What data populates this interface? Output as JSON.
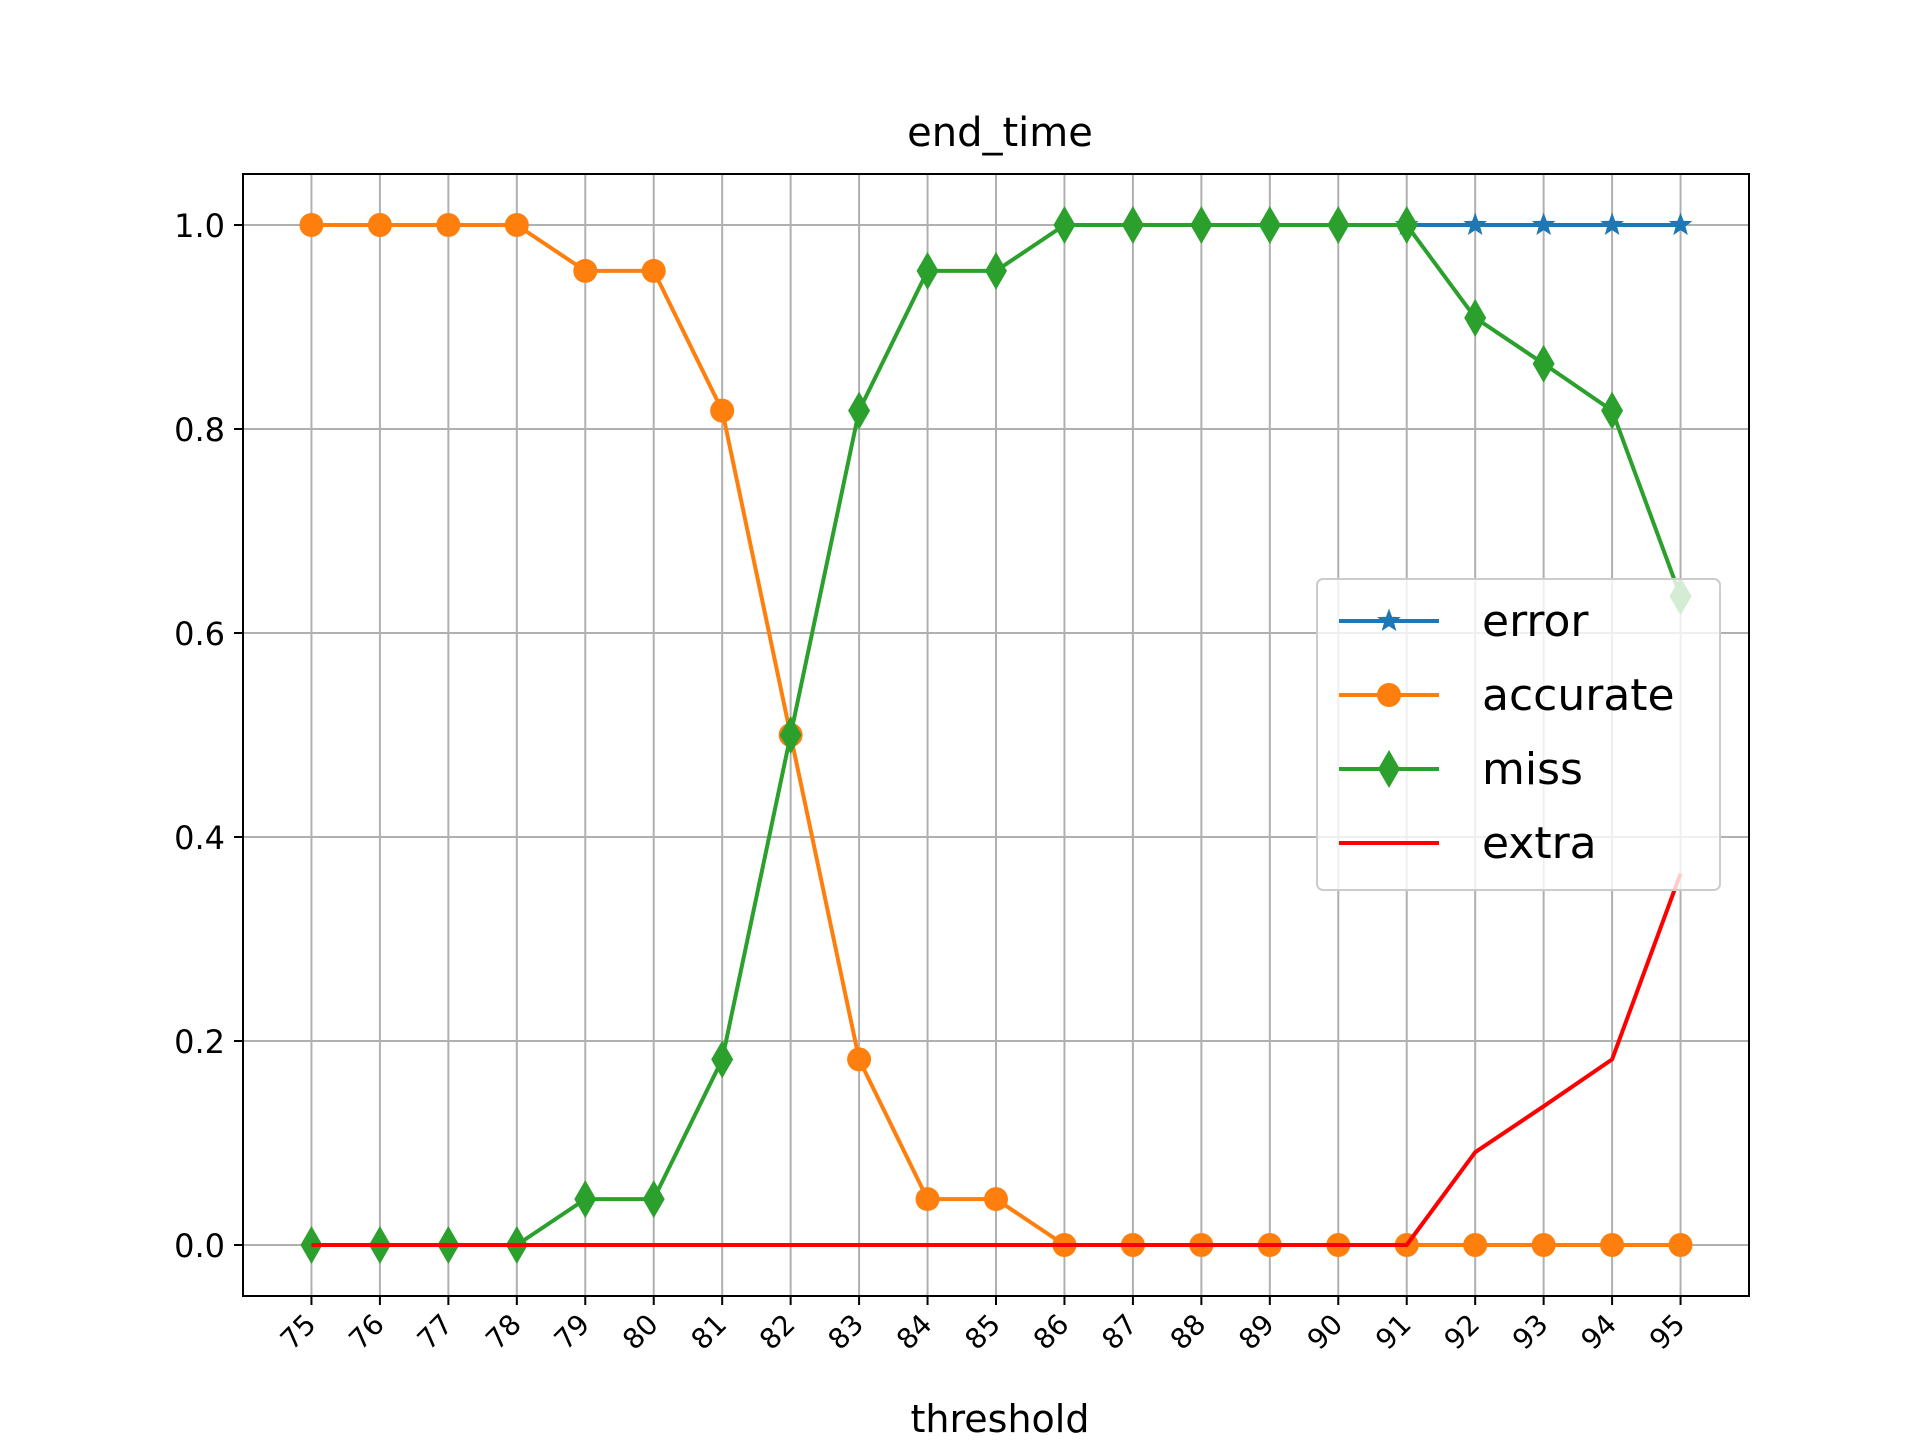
{
  "chart_data": {
    "type": "line",
    "title": "end_time",
    "xlabel": "threshold",
    "ylabel": "",
    "x": [
      75,
      76,
      77,
      78,
      79,
      80,
      81,
      82,
      83,
      84,
      85,
      86,
      87,
      88,
      89,
      90,
      91,
      92,
      93,
      94,
      95
    ],
    "ylim": [
      -0.05,
      1.05
    ],
    "yticks": [
      "0.0",
      "0.2",
      "0.4",
      "0.6",
      "0.8",
      "1.0"
    ],
    "grid": true,
    "legend_position": "center-right",
    "series": [
      {
        "name": "error",
        "color": "#1f77b4",
        "marker": "star",
        "values": [
          null,
          null,
          null,
          null,
          null,
          null,
          null,
          null,
          null,
          null,
          null,
          null,
          null,
          null,
          null,
          null,
          1.0,
          1.0,
          1.0,
          1.0,
          1.0
        ]
      },
      {
        "name": "accurate",
        "color": "#ff7f0e",
        "marker": "circle",
        "values": [
          1.0,
          1.0,
          1.0,
          1.0,
          0.955,
          0.955,
          0.818,
          0.5,
          0.182,
          0.045,
          0.045,
          0.0,
          0.0,
          0.0,
          0.0,
          0.0,
          0.0,
          0.0,
          0.0,
          0.0,
          0.0
        ]
      },
      {
        "name": "miss",
        "color": "#2ca02c",
        "marker": "thin_diamond",
        "values": [
          0.0,
          0.0,
          0.0,
          0.0,
          0.045,
          0.045,
          0.182,
          0.5,
          0.818,
          0.955,
          0.955,
          1.0,
          1.0,
          1.0,
          1.0,
          1.0,
          1.0,
          0.909,
          0.864,
          0.818,
          0.636
        ]
      },
      {
        "name": "extra",
        "color": "#ff0000",
        "marker": "none",
        "values": [
          0.0,
          0.0,
          0.0,
          0.0,
          0.0,
          0.0,
          0.0,
          0.0,
          0.0,
          0.0,
          0.0,
          0.0,
          0.0,
          0.0,
          0.0,
          0.0,
          0.0,
          0.091,
          0.136,
          0.182,
          0.364
        ]
      }
    ]
  }
}
